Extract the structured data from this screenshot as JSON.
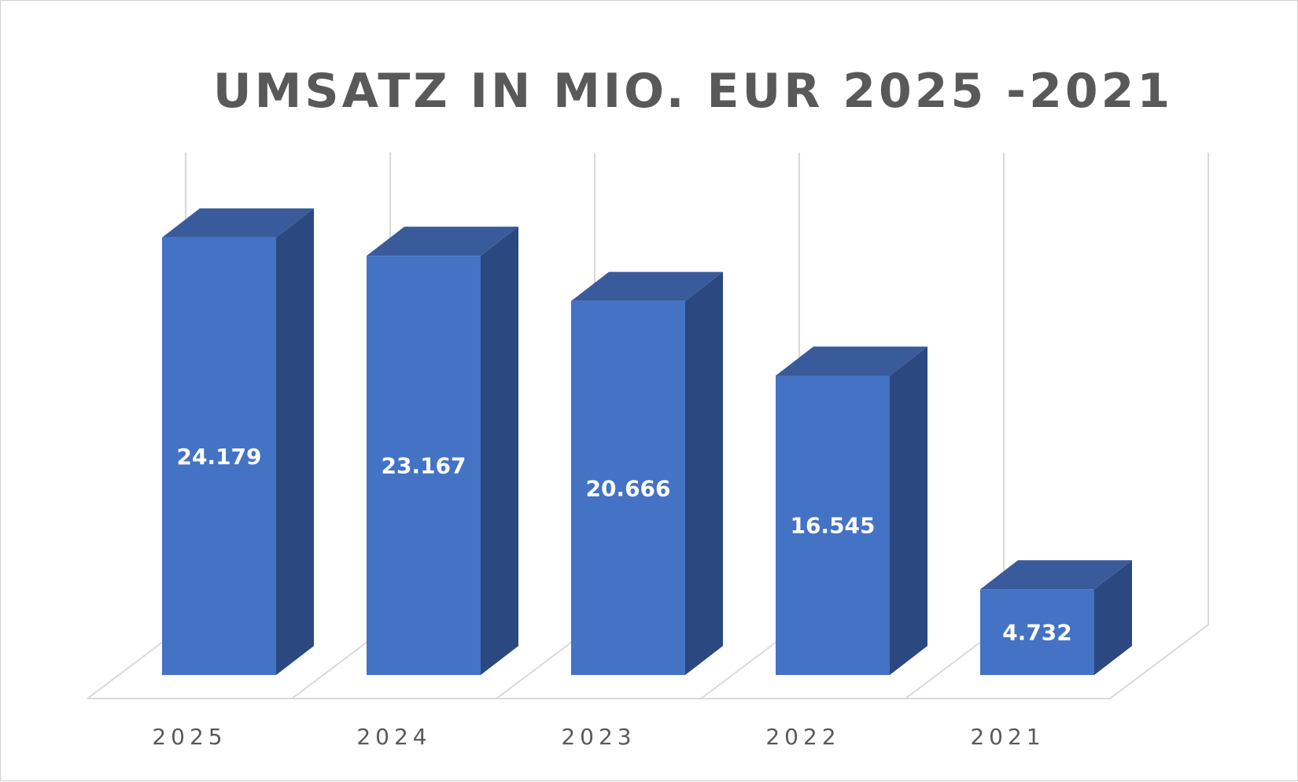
{
  "chart_data": {
    "type": "bar",
    "title": "UMSATZ IN MIO. EUR 2025 -2021",
    "categories": [
      "2025",
      "2024",
      "2023",
      "2022",
      "2021"
    ],
    "values": [
      24.179,
      23.167,
      20.666,
      16.545,
      4.732
    ],
    "data_labels": [
      "24.179",
      "23.167",
      "20.666",
      "16.545",
      "4.732"
    ],
    "xlabel": "",
    "ylabel": "",
    "ylim": [
      0,
      25
    ],
    "grid": true,
    "legend": "none",
    "three_d": true,
    "colors": {
      "bar_front": "#4472C4",
      "bar_side": "#2C4880",
      "bar_top": "#3A5B9B",
      "grid": "#D9D9D9",
      "text": "#595959",
      "label": "#FFFFFF"
    }
  }
}
